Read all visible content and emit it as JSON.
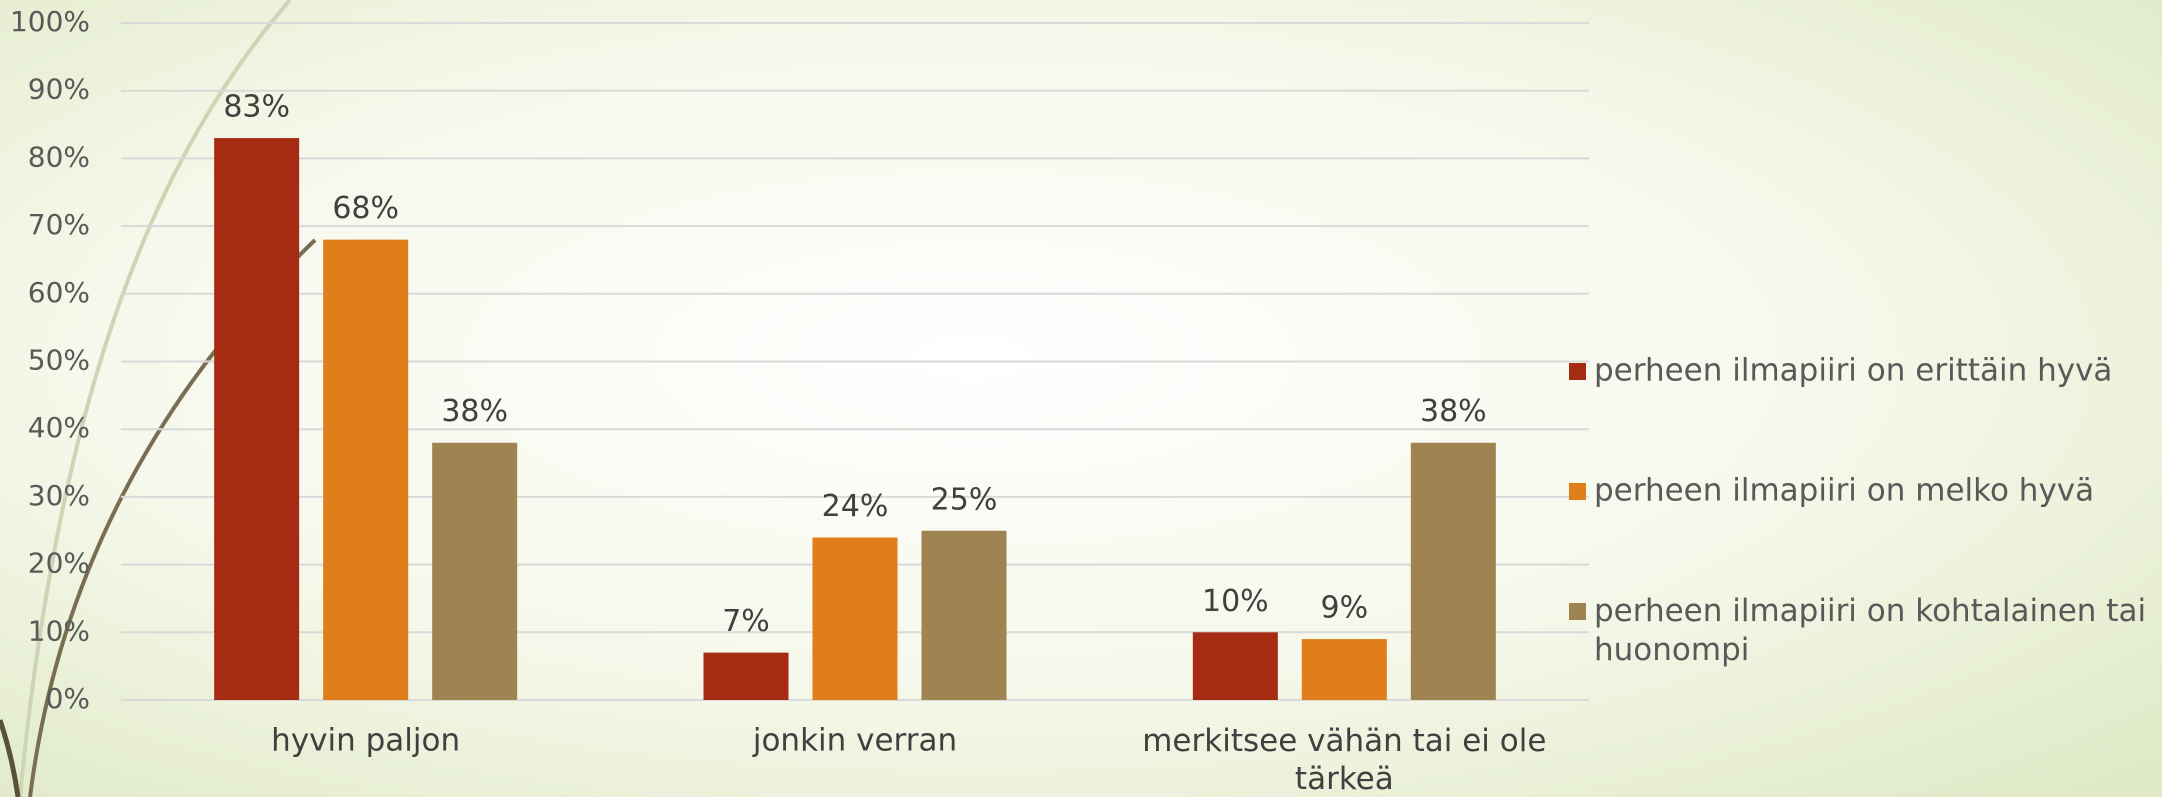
{
  "chart_data": {
    "type": "bar",
    "categories": [
      "hyvin paljon",
      "jonkin verran",
      "merkitsee vähän tai ei ole tärkeä"
    ],
    "series": [
      {
        "name": "perheen ilmapiiri on erittäin hyvä",
        "color": "#a52b12",
        "values": [
          83,
          7,
          10
        ],
        "value_labels": [
          "83%",
          "7%",
          "10%"
        ]
      },
      {
        "name": "perheen ilmapiiri on melko hyvä",
        "color": "#df7e1b",
        "values": [
          68,
          24,
          9
        ],
        "value_labels": [
          "68%",
          "24%",
          "9%"
        ]
      },
      {
        "name": "perheen ilmapiiri on kohtalainen tai huonompi",
        "color": "#9f8351",
        "values": [
          38,
          25,
          38
        ],
        "value_labels": [
          "38%",
          "25%",
          "38%"
        ]
      }
    ],
    "ylim": [
      0,
      100
    ],
    "yticks": [
      {
        "value": 0,
        "label": "0%"
      },
      {
        "value": 10,
        "label": "10%"
      },
      {
        "value": 20,
        "label": "20%"
      },
      {
        "value": 30,
        "label": "30%"
      },
      {
        "value": 40,
        "label": "40%"
      },
      {
        "value": 50,
        "label": "50%"
      },
      {
        "value": 60,
        "label": "60%"
      },
      {
        "value": 70,
        "label": "70%"
      },
      {
        "value": 80,
        "label": "80%"
      },
      {
        "value": 90,
        "label": "90%"
      },
      {
        "value": 100,
        "label": "100%"
      }
    ],
    "grid": true,
    "legend": "right"
  }
}
